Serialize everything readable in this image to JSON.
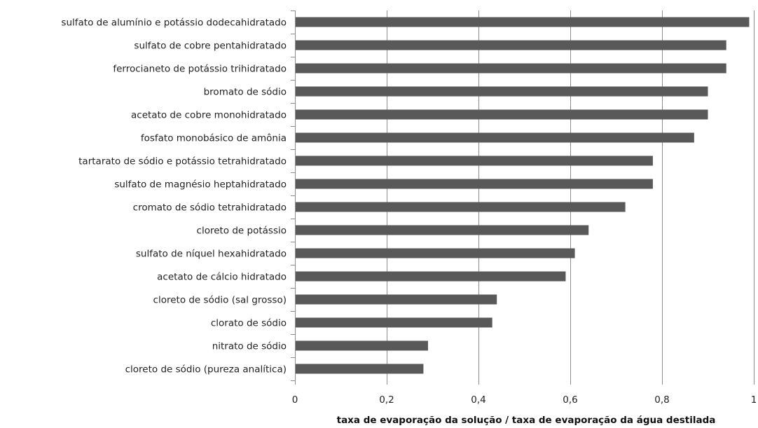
{
  "chart_data": {
    "type": "bar",
    "orientation": "horizontal",
    "xlabel": "taxa de evaporação da solução / taxa de evaporação da água destilada",
    "xlim": [
      0,
      1
    ],
    "xticks": [
      "0",
      "0,2",
      "0,4",
      "0,6",
      "0,8",
      "1"
    ],
    "grid": true,
    "bar_color": "#595959",
    "categories": [
      "sulfato de alumínio e potássio dodecahidratado",
      "sulfato de cobre pentahidratado",
      "ferrocianeto de potássio trihidratado",
      "bromato de sódio",
      "acetato de cobre monohidratado",
      "fosfato monobásico de amônia",
      "tartarato de sódio e potássio tetrahidratado",
      "sulfato de magnésio heptahidratado",
      "cromato de sódio tetrahidratado",
      "cloreto de potássio",
      "sulfato de níquel hexahidratado",
      "acetato de cálcio hidratado",
      "cloreto de sódio (sal grosso)",
      "clorato de sódio",
      "nitrato de sódio",
      "cloreto de sódio (pureza analítica)"
    ],
    "values": [
      0.99,
      0.94,
      0.94,
      0.9,
      0.9,
      0.87,
      0.78,
      0.78,
      0.72,
      0.64,
      0.61,
      0.59,
      0.44,
      0.43,
      0.29,
      0.28
    ]
  }
}
